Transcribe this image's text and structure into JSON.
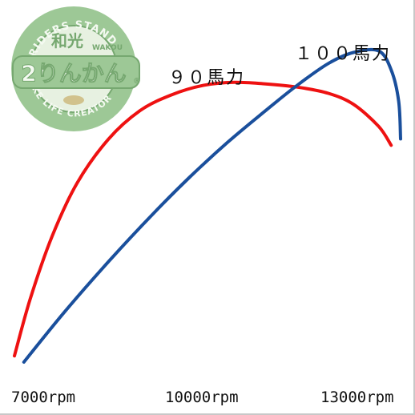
{
  "logo": {
    "top_text": "RIDERS STAND",
    "brand_kanji": "和光",
    "brand_roman": "WAKOU",
    "main_text": "2りんかん",
    "registered_mark": "®",
    "bottom_text": "BIKE LIFE CREATOR",
    "colors": {
      "ring": "#8dbf84",
      "ring_dark": "#5f9a58",
      "inner": "#e3efdc",
      "text_light": "#f4faf0",
      "accent": "#c9b87a"
    }
  },
  "chart_data": {
    "type": "line",
    "xlabel": "",
    "ylabel": "",
    "x_ticks": [
      {
        "value": 7000,
        "label": "7000rpm"
      },
      {
        "value": 10000,
        "label": "10000rpm"
      },
      {
        "value": 13000,
        "label": "13000rpm"
      }
    ],
    "xlim": [
      7000,
      13150
    ],
    "ylim": [
      0,
      105
    ],
    "grid": false,
    "legend": "none",
    "series": [
      {
        "name": "９０馬力",
        "color": "#ee1111",
        "points": [
          [
            7000,
            2
          ],
          [
            7250,
            20
          ],
          [
            7600,
            40
          ],
          [
            8000,
            57
          ],
          [
            8500,
            71
          ],
          [
            9000,
            80
          ],
          [
            9500,
            85
          ],
          [
            10000,
            88
          ],
          [
            10500,
            89
          ],
          [
            11000,
            88.5
          ],
          [
            11500,
            87.5
          ],
          [
            12000,
            85.5
          ],
          [
            12400,
            82
          ],
          [
            12800,
            75
          ],
          [
            13000,
            69
          ]
        ]
      },
      {
        "name": "１００馬力",
        "color": "#1a4f9c",
        "points": [
          [
            7150,
            0
          ],
          [
            7800,
            16
          ],
          [
            8500,
            32
          ],
          [
            9200,
            47
          ],
          [
            9800,
            59
          ],
          [
            10400,
            70
          ],
          [
            11000,
            80
          ],
          [
            11500,
            88
          ],
          [
            12000,
            95
          ],
          [
            12400,
            98.5
          ],
          [
            12800,
            99
          ],
          [
            13000,
            93
          ],
          [
            13120,
            83
          ],
          [
            13150,
            71
          ]
        ]
      }
    ]
  }
}
